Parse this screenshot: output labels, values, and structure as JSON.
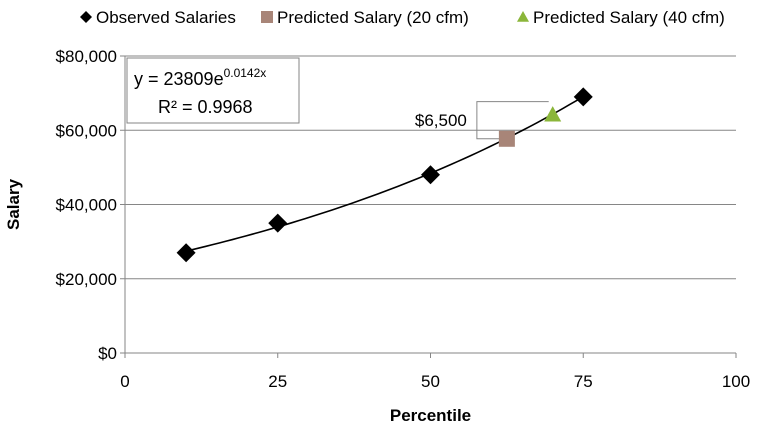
{
  "chart_data": {
    "type": "scatter",
    "xlabel": "Percentile",
    "ylabel": "Salary",
    "xlim": [
      0,
      100
    ],
    "ylim": [
      0,
      80000
    ],
    "x_ticks": [
      0,
      25,
      50,
      75,
      100
    ],
    "x_tick_labels": [
      "0",
      "25",
      "50",
      "75",
      "100"
    ],
    "y_ticks": [
      0,
      20000,
      40000,
      60000,
      80000
    ],
    "y_tick_labels": [
      "$0",
      "$20,000",
      "$40,000",
      "$60,000",
      "$80,000"
    ],
    "grid": "horizontal",
    "legend_position": "top",
    "series": [
      {
        "name": "Observed Salaries",
        "marker": "diamond",
        "color": "#000000",
        "x": [
          10,
          25,
          50,
          75
        ],
        "y": [
          27000,
          35000,
          48000,
          69000
        ]
      },
      {
        "name": "Predicted Salary (20 cfm)",
        "marker": "square",
        "color": "#a88578",
        "x": [
          62.5
        ],
        "y": [
          57700
        ]
      },
      {
        "name": "Predicted Salary (40 cfm)",
        "marker": "triangle",
        "color": "#8bb63a",
        "x": [
          70
        ],
        "y": [
          64200
        ]
      }
    ],
    "trendline": {
      "type": "exponential",
      "a": 23809,
      "b": 0.0142,
      "x_range": [
        10,
        75
      ],
      "color": "#000000"
    },
    "equation_box": {
      "eq_prefix": "y = 23809e",
      "eq_exponent": "0.0142x",
      "r2": "R² = 0.9968"
    },
    "annotation": {
      "label": "$6,500",
      "x": [
        62.5,
        70
      ],
      "y": [
        57700,
        64200
      ]
    }
  }
}
